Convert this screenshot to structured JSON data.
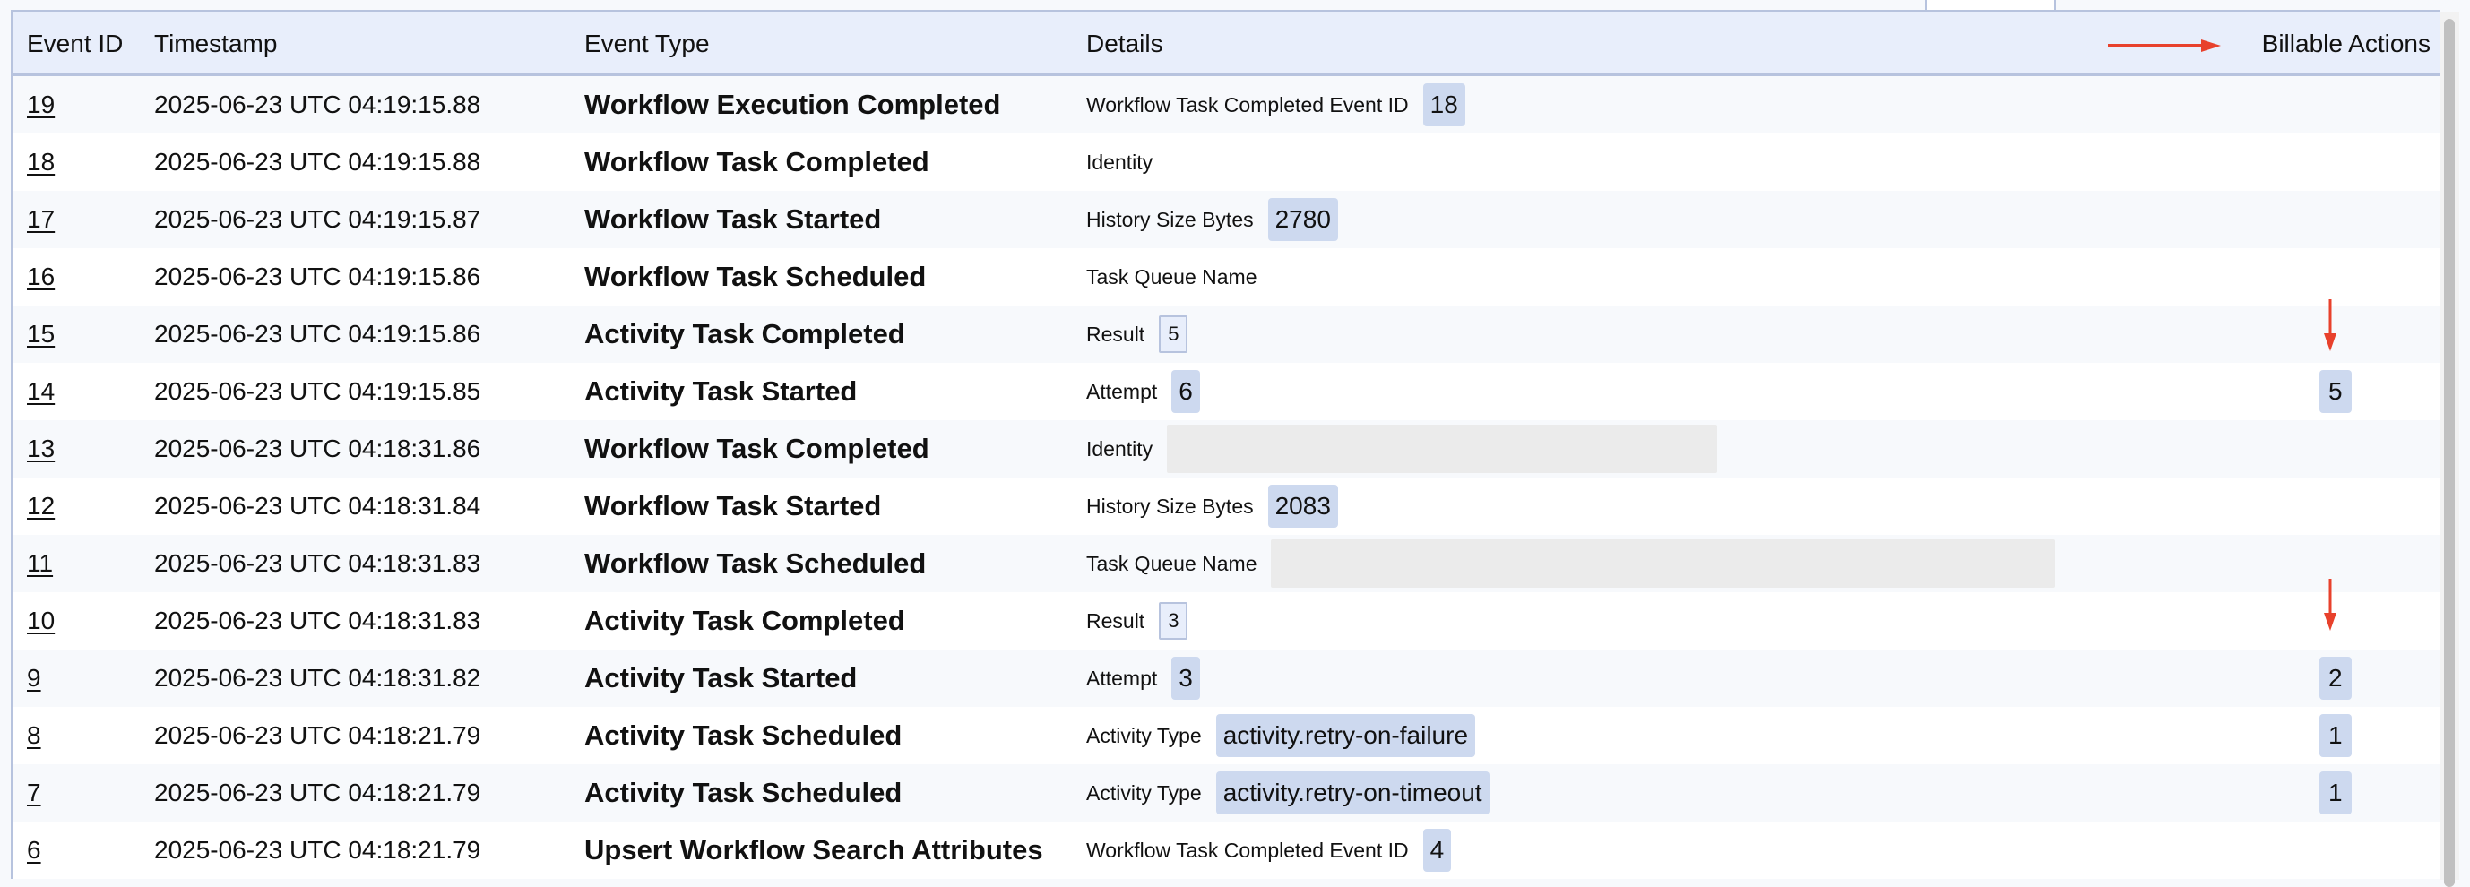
{
  "header": {
    "event_id": "Event ID",
    "timestamp": "Timestamp",
    "event_type": "Event Type",
    "details": "Details",
    "billable_actions": "Billable Actions"
  },
  "annotation_color": "#e8412c",
  "rows": [
    {
      "id": "19",
      "ts": "2025-06-23 UTC 04:19:15.88",
      "type": "Workflow Execution Completed",
      "label": "Workflow Task Completed Event ID",
      "value": "18",
      "style": "badge",
      "billable": ""
    },
    {
      "id": "18",
      "ts": "2025-06-23 UTC 04:19:15.88",
      "type": "Workflow Task Completed",
      "label": "Identity",
      "value": "",
      "style": "none",
      "billable": ""
    },
    {
      "id": "17",
      "ts": "2025-06-23 UTC 04:19:15.87",
      "type": "Workflow Task Started",
      "label": "History Size Bytes",
      "value": "2780",
      "style": "badge",
      "billable": ""
    },
    {
      "id": "16",
      "ts": "2025-06-23 UTC 04:19:15.86",
      "type": "Workflow Task Scheduled",
      "label": "Task Queue Name",
      "value": "",
      "style": "none",
      "billable": ""
    },
    {
      "id": "15",
      "ts": "2025-06-23 UTC 04:19:15.86",
      "type": "Activity Task Completed",
      "label": "Result",
      "value": "5",
      "style": "outline",
      "billable": ""
    },
    {
      "id": "14",
      "ts": "2025-06-23 UTC 04:19:15.85",
      "type": "Activity Task Started",
      "label": "Attempt",
      "value": "6",
      "style": "badge",
      "billable": "5"
    },
    {
      "id": "13",
      "ts": "2025-06-23 UTC 04:18:31.86",
      "type": "Workflow Task Completed",
      "label": "Identity",
      "value": "",
      "style": "placeholder-short",
      "billable": ""
    },
    {
      "id": "12",
      "ts": "2025-06-23 UTC 04:18:31.84",
      "type": "Workflow Task Started",
      "label": "History Size Bytes",
      "value": "2083",
      "style": "badge",
      "billable": ""
    },
    {
      "id": "11",
      "ts": "2025-06-23 UTC 04:18:31.83",
      "type": "Workflow Task Scheduled",
      "label": "Task Queue Name",
      "value": "",
      "style": "placeholder-long",
      "billable": ""
    },
    {
      "id": "10",
      "ts": "2025-06-23 UTC 04:18:31.83",
      "type": "Activity Task Completed",
      "label": "Result",
      "value": "3",
      "style": "outline",
      "billable": ""
    },
    {
      "id": "9",
      "ts": "2025-06-23 UTC 04:18:31.82",
      "type": "Activity Task Started",
      "label": "Attempt",
      "value": "3",
      "style": "badge",
      "billable": "2"
    },
    {
      "id": "8",
      "ts": "2025-06-23 UTC 04:18:21.79",
      "type": "Activity Task Scheduled",
      "label": "Activity Type",
      "value": "activity.retry-on-failure",
      "style": "badge",
      "billable": "1"
    },
    {
      "id": "7",
      "ts": "2025-06-23 UTC 04:18:21.79",
      "type": "Activity Task Scheduled",
      "label": "Activity Type",
      "value": "activity.retry-on-timeout",
      "style": "badge",
      "billable": "1"
    },
    {
      "id": "6",
      "ts": "2025-06-23 UTC 04:18:21.79",
      "type": "Upsert Workflow Search Attributes",
      "label": "Workflow Task Completed Event ID",
      "value": "4",
      "style": "badge",
      "billable": ""
    }
  ]
}
